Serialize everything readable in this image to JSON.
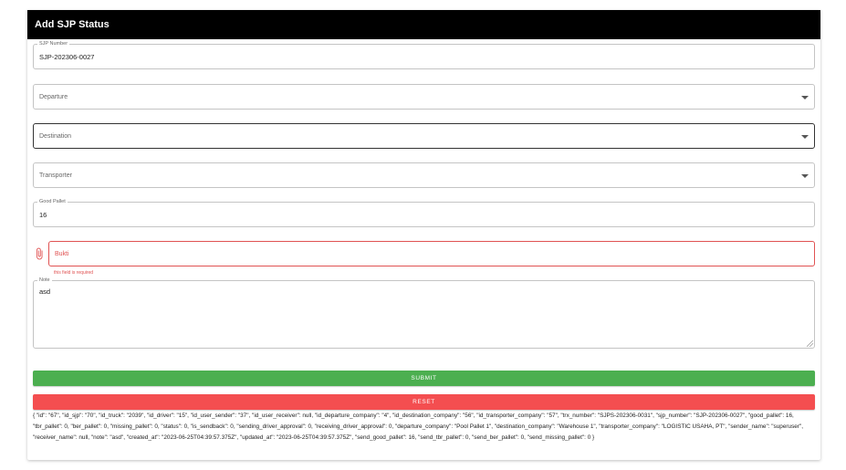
{
  "header": {
    "title": "Add SJP Status"
  },
  "form": {
    "sjp_number": {
      "label": "SJP Number",
      "value": "SJP-202306-0027"
    },
    "departure": {
      "placeholder": "Departure"
    },
    "destination": {
      "placeholder": "Destination"
    },
    "transporter": {
      "placeholder": "Transporter"
    },
    "good_pallet": {
      "label": "Good Pallet",
      "value": "16"
    },
    "bukti": {
      "placeholder": "Bukti",
      "error": "this field is required"
    },
    "note": {
      "label": "Note",
      "value": "asd"
    }
  },
  "buttons": {
    "submit": "SUBMIT",
    "reset": "RESET"
  },
  "debug_output": "{ \"id\": \"67\", \"id_sjp\": \"70\", \"id_truck\": \"2039\", \"id_driver\": \"15\", \"id_user_sender\": \"37\", \"id_user_receiver\": null, \"id_departure_company\": \"4\", \"id_destination_company\": \"56\", \"id_transporter_company\": \"57\", \"trx_number\": \"SJPS-202306-0031\", \"sjp_number\": \"SJP-202306-0027\", \"good_pallet\": 16, \"tbr_pallet\": 0, \"ber_pallet\": 0, \"missing_pallet\": 0, \"status\": 0, \"is_sendback\": 0, \"sending_driver_approval\": 0, \"receiving_driver_approval\": 0, \"departure_company\": \"Pool Pallet 1\", \"destination_company\": \"Warehouse 1\", \"transporter_company\": \"LOGISTIC USAHA, PT\", \"sender_name\": \"superuser\", \"receiver_name\": null, \"note\": \"asd\", \"created_at\": \"2023-06-25T04:39:57.375Z\", \"updated_at\": \"2023-06-25T04:39:57.375Z\", \"send_good_pallet\": 16, \"send_tbr_pallet\": 0, \"send_ber_pallet\": 0, \"send_missing_pallet\": 0 }",
  "colors": {
    "header_bg": "#000000",
    "submit": "#4caf50",
    "reset": "#f44e50",
    "error": "#e05252"
  },
  "icons": {
    "attachment": "paperclip-icon",
    "dropdown": "caret-down-icon"
  }
}
